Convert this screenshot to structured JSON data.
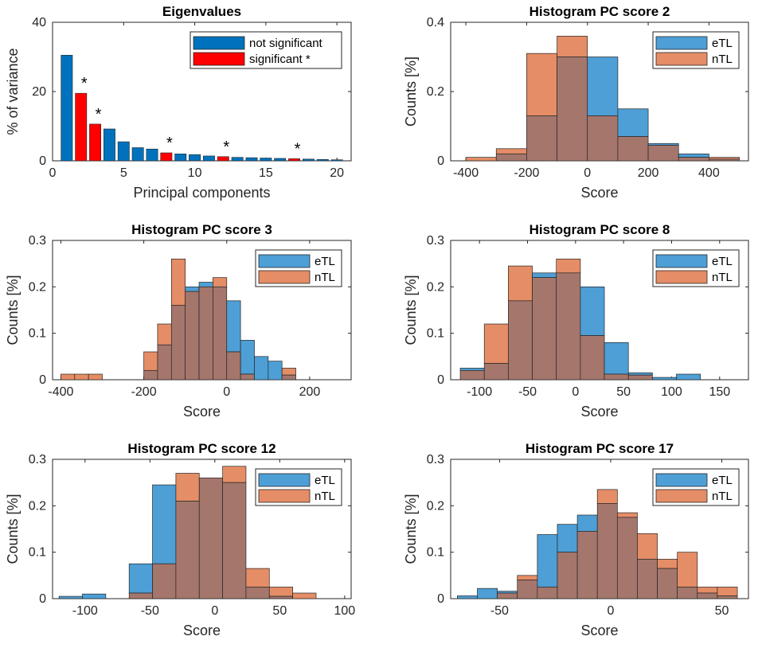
{
  "figure": {
    "title": "Eigenvalue and PC score histogram figure"
  },
  "colors": {
    "not_significant": "#0072BD",
    "significant": "#FF0000",
    "eTL": "#4D9FD6",
    "nTL": "#E58D66",
    "overlap": "#A5766C",
    "axis": "#262626"
  },
  "chart_data": [
    {
      "type": "bar",
      "title": "Eigenvalues",
      "xlabel": "Principal components",
      "ylabel": "% of variance",
      "xlim": [
        0,
        21
      ],
      "ylim": [
        0,
        40
      ],
      "xticks": [
        0,
        5,
        10,
        15,
        20
      ],
      "yticks": [
        0,
        20,
        40
      ],
      "legend": {
        "position": "top-right",
        "entries": [
          {
            "label": "not significant",
            "color_key": "not_significant"
          },
          {
            "label": "significant *",
            "color_key": "significant"
          }
        ]
      },
      "categories": [
        1,
        2,
        3,
        4,
        5,
        6,
        7,
        8,
        9,
        10,
        11,
        12,
        13,
        14,
        15,
        16,
        17,
        18,
        19,
        20
      ],
      "values": [
        30.5,
        19.5,
        10.6,
        9.2,
        5.5,
        3.8,
        3.4,
        2.3,
        2.0,
        1.8,
        1.4,
        1.2,
        1.0,
        0.9,
        0.8,
        0.7,
        0.6,
        0.5,
        0.4,
        0.3
      ],
      "significant": [
        2,
        3,
        8,
        12,
        17
      ],
      "annotation": "*"
    },
    {
      "type": "histogram",
      "title": "Histogram PC score 2",
      "xlabel": "Score",
      "ylabel": "Counts [%]",
      "xlim": [
        -450,
        530
      ],
      "ylim": [
        0,
        0.4
      ],
      "xticks": [
        -400,
        -200,
        0,
        200,
        400
      ],
      "yticks": [
        0,
        0.2,
        0.4
      ],
      "ytick_labels": [
        "0",
        "0.2",
        "0.4"
      ],
      "legend": {
        "position": "top-right",
        "entries": [
          "eTL",
          "nTL"
        ]
      },
      "bin_edges": [
        -400,
        -300,
        -200,
        -100,
        0,
        100,
        200,
        300,
        400,
        500
      ],
      "series": [
        {
          "name": "eTL",
          "values": [
            0.0,
            0.02,
            0.13,
            0.3,
            0.3,
            0.15,
            0.05,
            0.02,
            0.005
          ]
        },
        {
          "name": "nTL",
          "values": [
            0.01,
            0.035,
            0.31,
            0.36,
            0.13,
            0.07,
            0.045,
            0.01,
            0.01
          ]
        }
      ]
    },
    {
      "type": "histogram",
      "title": "Histogram PC score 3",
      "xlabel": "Score",
      "ylabel": "Counts [%]",
      "xlim": [
        -420,
        300
      ],
      "ylim": [
        0,
        0.3
      ],
      "xticks": [
        -400,
        -200,
        0,
        200
      ],
      "yticks": [
        0,
        0.1,
        0.2,
        0.3
      ],
      "ytick_labels": [
        "0",
        "0.1",
        "0.2",
        "0.3"
      ],
      "legend": {
        "position": "top-right",
        "entries": [
          "eTL",
          "nTL"
        ]
      },
      "bin_edges": [
        -400,
        -366.7,
        -333.3,
        -300,
        -266.7,
        -233.3,
        -200,
        -166.7,
        -133.3,
        -100,
        -66.7,
        -33.3,
        0,
        33.3,
        66.7,
        100,
        133.3,
        166.7,
        200,
        233.3,
        266.7,
        300
      ],
      "series": [
        {
          "name": "eTL",
          "values": [
            0,
            0,
            0,
            0,
            0,
            0,
            0.02,
            0.075,
            0.16,
            0.2,
            0.21,
            0.2,
            0.17,
            0.085,
            0.05,
            0.04,
            0.01,
            0,
            0,
            0,
            0
          ]
        },
        {
          "name": "nTL",
          "values": [
            0.012,
            0.012,
            0.012,
            0,
            0,
            0,
            0.06,
            0.12,
            0.26,
            0.19,
            0.2,
            0.22,
            0.06,
            0.012,
            0,
            0,
            0.025,
            0,
            0,
            0,
            0
          ]
        }
      ]
    },
    {
      "type": "histogram",
      "title": "Histogram PC score 8",
      "xlabel": "Score",
      "ylabel": "Counts [%]",
      "xlim": [
        -130,
        180
      ],
      "ylim": [
        0,
        0.3
      ],
      "xticks": [
        -100,
        -50,
        0,
        50,
        100,
        150
      ],
      "yticks": [
        0,
        0.1,
        0.2,
        0.3
      ],
      "ytick_labels": [
        "0",
        "0.1",
        "0.2",
        "0.3"
      ],
      "legend": {
        "position": "top-right",
        "entries": [
          "eTL",
          "nTL"
        ]
      },
      "bin_edges": [
        -120,
        -95,
        -70,
        -45,
        -20,
        5,
        30,
        55,
        80,
        105,
        130,
        155,
        180
      ],
      "series": [
        {
          "name": "eTL",
          "values": [
            0.025,
            0.035,
            0.17,
            0.23,
            0.23,
            0.2,
            0.08,
            0.015,
            0.005,
            0.012,
            0,
            0
          ]
        },
        {
          "name": "nTL",
          "values": [
            0.02,
            0.12,
            0.245,
            0.22,
            0.26,
            0.095,
            0.012,
            0.01,
            0,
            0,
            0,
            0
          ]
        }
      ]
    },
    {
      "type": "histogram",
      "title": "Histogram PC score 12",
      "xlabel": "Score",
      "ylabel": "Counts [%]",
      "xlim": [
        -125,
        105
      ],
      "ylim": [
        0,
        0.3
      ],
      "xticks": [
        -100,
        -50,
        0,
        50,
        100
      ],
      "yticks": [
        0,
        0.1,
        0.2,
        0.3
      ],
      "ytick_labels": [
        "0",
        "0.1",
        "0.2",
        "0.3"
      ],
      "legend": {
        "position": "top-right",
        "entries": [
          "eTL",
          "nTL"
        ]
      },
      "bin_edges": [
        -120,
        -102,
        -84,
        -66,
        -48,
        -30,
        -12,
        6,
        24,
        42,
        60,
        78,
        96
      ],
      "series": [
        {
          "name": "eTL",
          "values": [
            0.005,
            0.01,
            0,
            0.075,
            0.245,
            0.21,
            0.26,
            0.25,
            0.025,
            0.005,
            0,
            0
          ]
        },
        {
          "name": "nTL",
          "values": [
            0,
            0,
            0,
            0.012,
            0.075,
            0.27,
            0.26,
            0.285,
            0.065,
            0.025,
            0.012,
            0
          ]
        }
      ]
    },
    {
      "type": "histogram",
      "title": "Histogram PC score 17",
      "xlabel": "Score",
      "ylabel": "Counts [%]",
      "xlim": [
        -72,
        62
      ],
      "ylim": [
        0,
        0.3
      ],
      "xticks": [
        -50,
        0,
        50
      ],
      "yticks": [
        0,
        0.1,
        0.2,
        0.3
      ],
      "ytick_labels": [
        "0",
        "0.1",
        "0.2",
        "0.3"
      ],
      "legend": {
        "position": "top-right",
        "entries": [
          "eTL",
          "nTL"
        ]
      },
      "bin_edges": [
        -69,
        -60,
        -51,
        -42,
        -33,
        -24,
        -15,
        -6,
        3,
        12,
        21,
        30,
        39,
        48,
        57
      ],
      "series": [
        {
          "name": "eTL",
          "values": [
            0.006,
            0.022,
            0.016,
            0.04,
            0.138,
            0.16,
            0.18,
            0.205,
            0.175,
            0.085,
            0.065,
            0.025,
            0.012,
            0.006
          ]
        },
        {
          "name": "nTL",
          "values": [
            0,
            0,
            0.012,
            0.05,
            0.025,
            0.1,
            0.145,
            0.235,
            0.185,
            0.14,
            0.085,
            0.1,
            0.025,
            0.025
          ]
        }
      ]
    }
  ]
}
